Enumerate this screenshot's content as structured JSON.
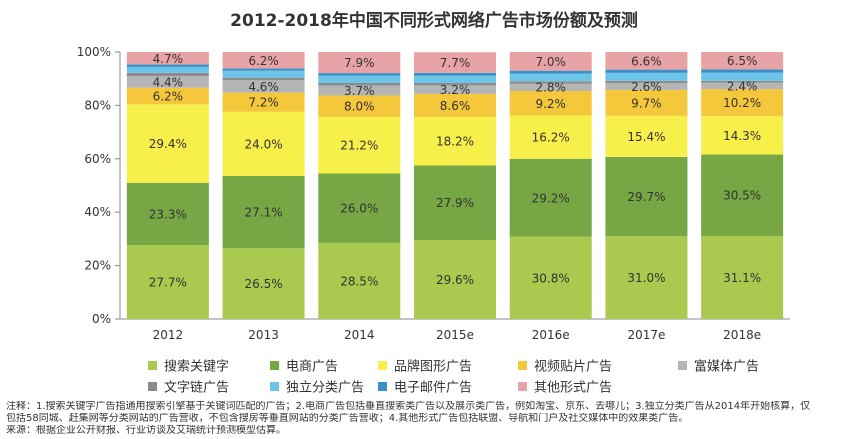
{
  "chart_data": {
    "type": "bar",
    "stacked": true,
    "title": "2012-2018年中国不同形式网络广告市场份额及预测",
    "categories": [
      "2012",
      "2013",
      "2014",
      "2015e",
      "2016e",
      "2017e",
      "2018e"
    ],
    "yticks": [
      "0%",
      "20%",
      "40%",
      "60%",
      "80%",
      "100%"
    ],
    "ylim": [
      0,
      100
    ],
    "grid": false,
    "legend_position": "bottom",
    "series": [
      {
        "name": "搜索关键字",
        "color": "#a9c94f",
        "values": [
          27.7,
          26.5,
          28.5,
          29.6,
          30.8,
          31.0,
          31.1
        ],
        "labels": [
          "27.7%",
          "26.5%",
          "28.5%",
          "29.6%",
          "30.8%",
          "31.0%",
          "31.1%"
        ]
      },
      {
        "name": "电商广告",
        "color": "#76a744",
        "values": [
          23.3,
          27.1,
          26.0,
          27.9,
          29.2,
          29.7,
          30.5
        ],
        "labels": [
          "23.3%",
          "27.1%",
          "26.0%",
          "27.9%",
          "29.2%",
          "29.7%",
          "30.5%"
        ]
      },
      {
        "name": "品牌图形广告",
        "color": "#f7ef4a",
        "values": [
          29.4,
          24.0,
          21.2,
          18.2,
          16.2,
          15.4,
          14.3
        ],
        "labels": [
          "29.4%",
          "24.0%",
          "21.2%",
          "18.2%",
          "16.2%",
          "15.4%",
          "14.3%"
        ]
      },
      {
        "name": "视频贴片广告",
        "color": "#f5c73a",
        "values": [
          6.2,
          7.2,
          8.0,
          8.6,
          9.2,
          9.7,
          10.2
        ],
        "labels": [
          "6.2%",
          "7.2%",
          "8.0%",
          "8.6%",
          "9.2%",
          "9.7%",
          "10.2%"
        ]
      },
      {
        "name": "富媒体广告",
        "color": "#b5b5b5",
        "values": [
          4.4,
          4.6,
          3.7,
          3.2,
          2.8,
          2.6,
          2.4
        ],
        "labels": [
          "4.4%",
          "4.6%",
          "3.7%",
          "3.2%",
          "2.8%",
          "2.6%",
          "2.4%"
        ]
      },
      {
        "name": "文字链广告",
        "color": "#8c8c8c",
        "values": [
          1.2,
          1.0,
          1.0,
          0.9,
          0.8,
          0.8,
          0.7
        ],
        "labels": [
          "",
          "",
          "",
          "",
          "",
          "",
          ""
        ]
      },
      {
        "name": "独立分类广告",
        "color": "#6cc4e8",
        "values": [
          2.2,
          2.6,
          2.8,
          2.8,
          2.9,
          3.0,
          3.1
        ],
        "labels": [
          "",
          "",
          "",
          "",
          "",
          "",
          ""
        ]
      },
      {
        "name": "电子邮件广告",
        "color": "#3a8fc7",
        "values": [
          0.9,
          0.8,
          0.9,
          1.0,
          1.1,
          1.2,
          1.2
        ],
        "labels": [
          "",
          "",
          "",
          "",
          "",
          "",
          ""
        ]
      },
      {
        "name": "其他形式广告",
        "color": "#e8a3a6",
        "values": [
          4.7,
          6.2,
          7.9,
          7.7,
          7.0,
          6.6,
          6.5
        ],
        "labels": [
          "4.7%",
          "6.2%",
          "7.9%",
          "7.7%",
          "7.0%",
          "6.6%",
          "6.5%"
        ]
      }
    ]
  },
  "notes": {
    "line1": "注释：1.搜索关键字广告指通用搜索引擎基于关键词匹配的广告；2.电商广告包括垂直搜索类广告以及展示类广告，例如淘宝、京东、去哪儿；3.独立分类广告从2014年开始核算，仅",
    "line2": "包括58同城、赶集网等分类网站的广告营收，不包含搜房等垂直网站的分类广告营收；4.其他形式广告包括联盟、导航和门户及社交媒体中的效果类广告。",
    "line3": "来源：根据企业公开财报、行业访谈及艾瑞统计预测模型估算。"
  }
}
